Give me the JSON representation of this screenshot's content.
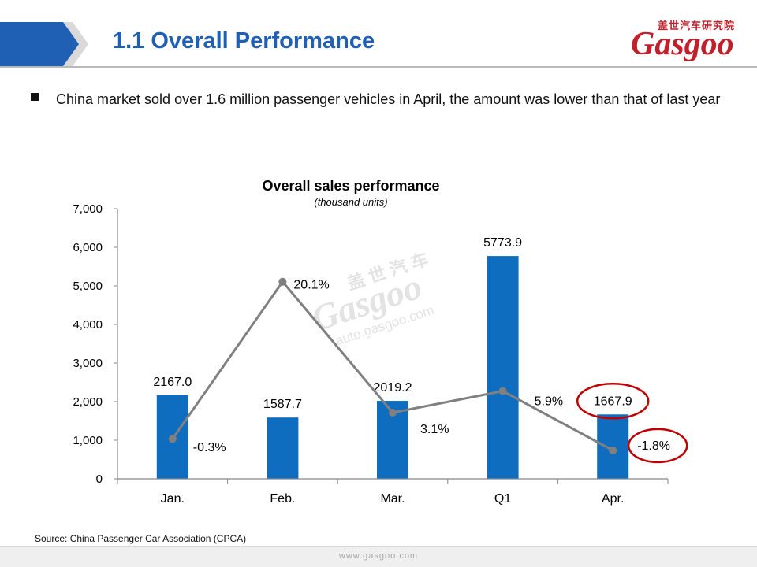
{
  "header": {
    "title": "1.1 Overall Performance",
    "logo_text_cn": "盖世汽车研究院",
    "logo_text_en": "Gasgoo",
    "brand_color": "#c0202a",
    "title_color": "#1f5fb4"
  },
  "bullet": {
    "text": "China market sold over 1.6 million passenger vehicles in April, the amount was lower than that of last year"
  },
  "watermark": {
    "cn": "盖 世 汽 车",
    "en": "Gasgoo",
    "url": "auto.gasgoo.com"
  },
  "chart_data": {
    "type": "bar",
    "title": "Overall sales performance",
    "subtitle": "(thousand units)",
    "categories": [
      "Jan.",
      "Feb.",
      "Mar.",
      "Q1",
      "Apr."
    ],
    "series": [
      {
        "type": "bar",
        "values": [
          2167.0,
          1587.7,
          2019.2,
          5773.9,
          1667.9
        ],
        "labels": [
          "2167.0",
          "1587.7",
          "2019.2",
          "5773.9",
          "1667.9"
        ],
        "color": "#0f6dbf"
      },
      {
        "type": "line",
        "values": [
          -0.3,
          20.1,
          3.1,
          5.9,
          -1.8
        ],
        "labels": [
          "-0.3%",
          "20.1%",
          "3.1%",
          "5.9%",
          "-1.8%"
        ],
        "color": "#808080",
        "secondary_axis_shown": false
      }
    ],
    "ylim": [
      0,
      7000
    ],
    "yticks": [
      0,
      1000,
      2000,
      3000,
      4000,
      5000,
      6000,
      7000
    ],
    "ytick_labels": [
      "0",
      "1,000",
      "2,000",
      "3,000",
      "4,000",
      "5,000",
      "6,000",
      "7,000"
    ],
    "grid": false,
    "legend": "none",
    "highlighted": [
      "1667.9",
      "-1.8%"
    ],
    "highlight_color": "#c00000"
  },
  "source": "Source: China Passenger Car Association (CPCA)",
  "footer": {
    "url": "www.gasgoo.com"
  }
}
